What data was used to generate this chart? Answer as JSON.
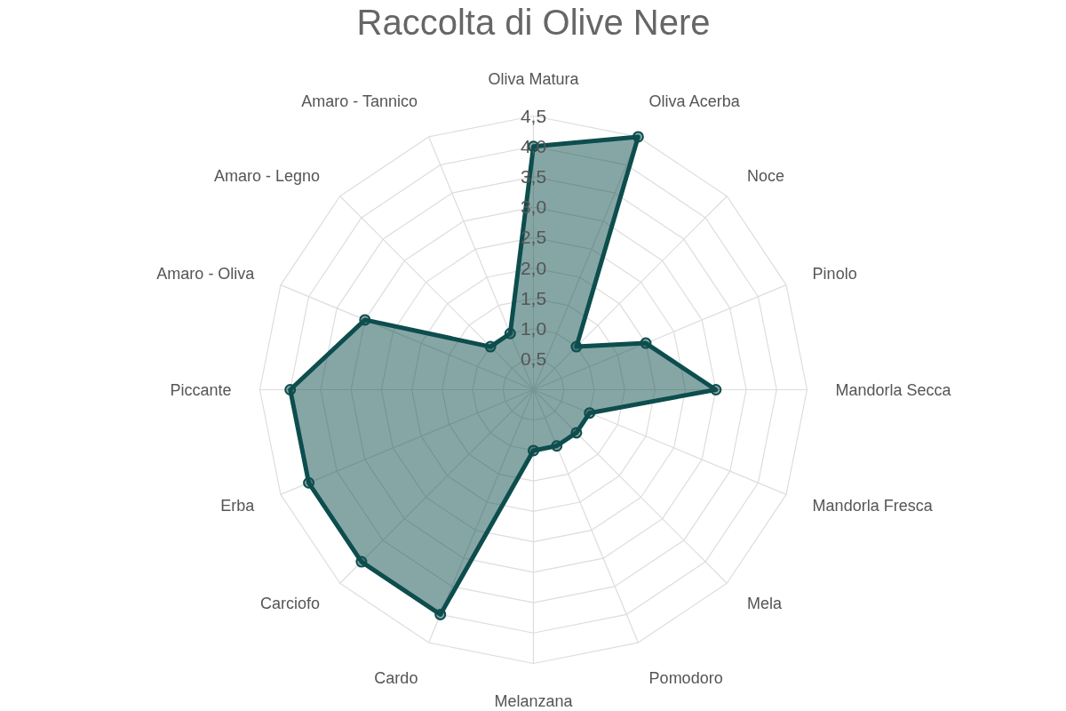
{
  "chart_data": {
    "type": "radar",
    "title": "Raccolta di Olive Nere",
    "categories": [
      "Oliva Matura",
      "Oliva Acerba",
      "Noce",
      "Pinolo",
      "Mandorla Secca",
      "Mandorla Fresca",
      "Mela",
      "Pomodoro",
      "Melanzana",
      "Cardo",
      "Carciofo",
      "Erba",
      "Piccante",
      "Amaro - Oliva",
      "Amaro - Legno",
      "Amaro - Tannico"
    ],
    "series": [
      {
        "color": "#0d4d4d",
        "values": [
          4.0,
          4.5,
          1.0,
          2.0,
          3.0,
          1.0,
          1.0,
          1.0,
          1.0,
          4.0,
          4.0,
          4.0,
          4.0,
          3.0,
          1.0,
          1.0
        ]
      }
    ],
    "ylim": [
      0,
      4.5
    ],
    "yticks": [
      {
        "value": 0.5,
        "label": "0,5"
      },
      {
        "value": 1.0,
        "label": "1,0"
      },
      {
        "value": 1.5,
        "label": "1,5"
      },
      {
        "value": 2.0,
        "label": "2,0"
      },
      {
        "value": 2.5,
        "label": "2,5"
      },
      {
        "value": 3.0,
        "label": "3,0"
      },
      {
        "value": 3.5,
        "label": "3,5"
      },
      {
        "value": 4.0,
        "label": "4,0"
      },
      {
        "value": 4.5,
        "label": "4,5"
      }
    ],
    "grid": true,
    "marker": "circle"
  }
}
